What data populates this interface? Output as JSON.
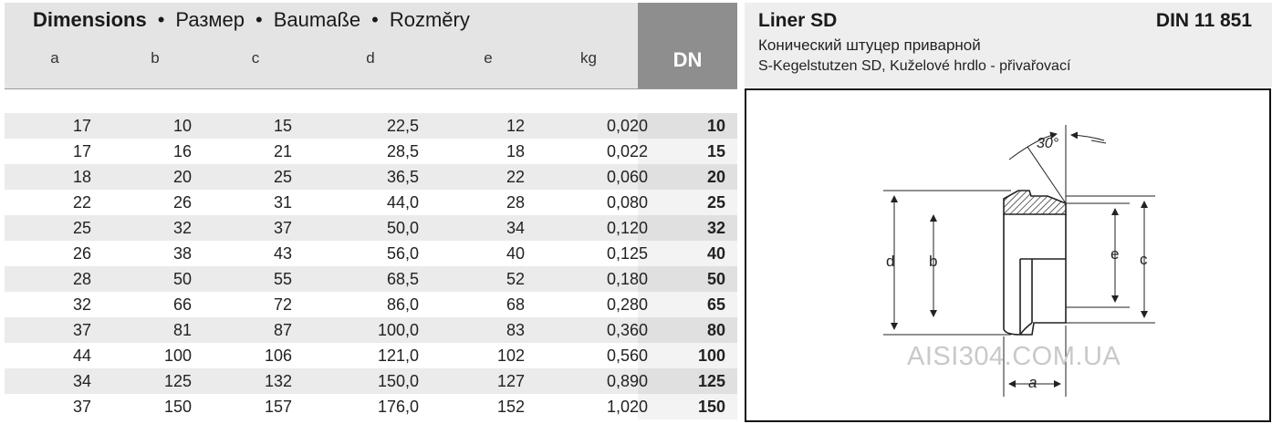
{
  "table": {
    "title_bold": "Dimensions",
    "title_sep": "•",
    "title_ru": "Размер",
    "title_de": "Baumaße",
    "title_cz": "Rozměry",
    "columns": [
      "a",
      "b",
      "c",
      "d",
      "e",
      "kg"
    ],
    "dn_label": "DN",
    "rows": [
      [
        "17",
        "10",
        "15",
        "22,5",
        "12",
        "0,020",
        "10"
      ],
      [
        "17",
        "16",
        "21",
        "28,5",
        "18",
        "0,022",
        "15"
      ],
      [
        "18",
        "20",
        "25",
        "36,5",
        "22",
        "0,060",
        "20"
      ],
      [
        "22",
        "26",
        "31",
        "44,0",
        "28",
        "0,080",
        "25"
      ],
      [
        "25",
        "32",
        "37",
        "50,0",
        "34",
        "0,120",
        "32"
      ],
      [
        "26",
        "38",
        "43",
        "56,0",
        "40",
        "0,125",
        "40"
      ],
      [
        "28",
        "50",
        "55",
        "68,5",
        "52",
        "0,180",
        "50"
      ],
      [
        "32",
        "66",
        "72",
        "86,0",
        "68",
        "0,280",
        "65"
      ],
      [
        "37",
        "81",
        "87",
        "100,0",
        "83",
        "0,360",
        "80"
      ],
      [
        "44",
        "100",
        "106",
        "121,0",
        "102",
        "0,560",
        "100"
      ],
      [
        "34",
        "125",
        "132",
        "150,0",
        "127",
        "0,890",
        "125"
      ],
      [
        "37",
        "150",
        "157",
        "176,0",
        "152",
        "1,020",
        "150"
      ]
    ]
  },
  "product": {
    "name": "Liner SD",
    "standard": "DIN 11 851",
    "desc_ru": "Конический штуцер приварной",
    "desc_de_cz": "S-Kegelstutzen SD, Kuželové hrdlo - přivařovací"
  },
  "drawing": {
    "angle_label": "30°",
    "label_d": "d",
    "label_b": "b",
    "label_e": "e",
    "label_c": "c",
    "label_a": "a"
  },
  "watermark": "AISI304.COM.UA"
}
